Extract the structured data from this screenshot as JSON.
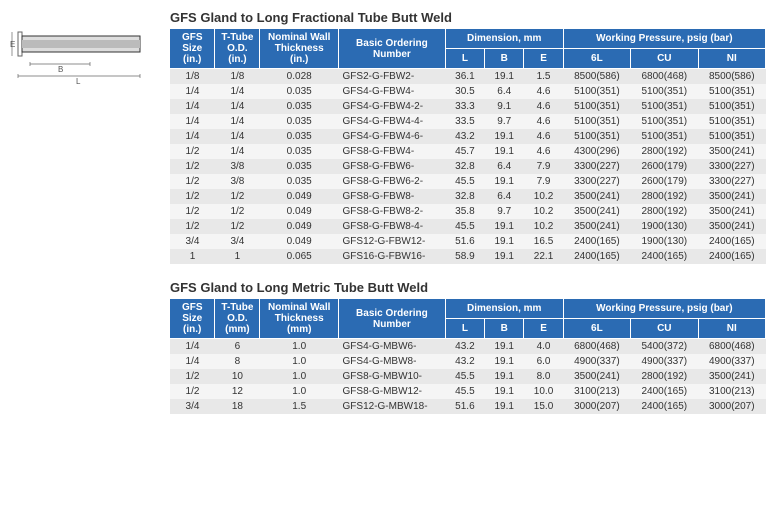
{
  "table1": {
    "title": "GFS Gland to Long Fractional Tube Butt Weld",
    "headers": {
      "gfs": "GFS Size (in.)",
      "ttube": "T-Tube O.D. (in.)",
      "nominal": "Nominal Wall Thickness (in.)",
      "basic": "Basic Ordering Number",
      "dim_group": "Dimension, mm",
      "L": "L",
      "B": "B",
      "E": "E",
      "wp_group": "Working Pressure, psig (bar)",
      "6L": "6L",
      "CU": "CU",
      "NI": "NI"
    },
    "rows": [
      {
        "gfs": "1/8",
        "ttube": "1/8",
        "nom": "0.028",
        "bon": "GFS2-G-FBW2-",
        "L": "36.1",
        "B": "19.1",
        "E": "1.5",
        "6L": "8500(586)",
        "CU": "6800(468)",
        "NI": "8500(586)"
      },
      {
        "gfs": "1/4",
        "ttube": "1/4",
        "nom": "0.035",
        "bon": "GFS4-G-FBW4-",
        "L": "30.5",
        "B": "6.4",
        "E": "4.6",
        "6L": "5100(351)",
        "CU": "5100(351)",
        "NI": "5100(351)"
      },
      {
        "gfs": "1/4",
        "ttube": "1/4",
        "nom": "0.035",
        "bon": "GFS4-G-FBW4-2-",
        "L": "33.3",
        "B": "9.1",
        "E": "4.6",
        "6L": "5100(351)",
        "CU": "5100(351)",
        "NI": "5100(351)"
      },
      {
        "gfs": "1/4",
        "ttube": "1/4",
        "nom": "0.035",
        "bon": "GFS4-G-FBW4-4-",
        "L": "33.5",
        "B": "9.7",
        "E": "4.6",
        "6L": "5100(351)",
        "CU": "5100(351)",
        "NI": "5100(351)"
      },
      {
        "gfs": "1/4",
        "ttube": "1/4",
        "nom": "0.035",
        "bon": "GFS4-G-FBW4-6-",
        "L": "43.2",
        "B": "19.1",
        "E": "4.6",
        "6L": "5100(351)",
        "CU": "5100(351)",
        "NI": "5100(351)"
      },
      {
        "gfs": "1/2",
        "ttube": "1/4",
        "nom": "0.035",
        "bon": "GFS8-G-FBW4-",
        "L": "45.7",
        "B": "19.1",
        "E": "4.6",
        "6L": "4300(296)",
        "CU": "2800(192)",
        "NI": "3500(241)"
      },
      {
        "gfs": "1/2",
        "ttube": "3/8",
        "nom": "0.035",
        "bon": "GFS8-G-FBW6-",
        "L": "32.8",
        "B": "6.4",
        "E": "7.9",
        "6L": "3300(227)",
        "CU": "2600(179)",
        "NI": "3300(227)"
      },
      {
        "gfs": "1/2",
        "ttube": "3/8",
        "nom": "0.035",
        "bon": "GFS8-G-FBW6-2-",
        "L": "45.5",
        "B": "19.1",
        "E": "7.9",
        "6L": "3300(227)",
        "CU": "2600(179)",
        "NI": "3300(227)"
      },
      {
        "gfs": "1/2",
        "ttube": "1/2",
        "nom": "0.049",
        "bon": "GFS8-G-FBW8-",
        "L": "32.8",
        "B": "6.4",
        "E": "10.2",
        "6L": "3500(241)",
        "CU": "2800(192)",
        "NI": "3500(241)"
      },
      {
        "gfs": "1/2",
        "ttube": "1/2",
        "nom": "0.049",
        "bon": "GFS8-G-FBW8-2-",
        "L": "35.8",
        "B": "9.7",
        "E": "10.2",
        "6L": "3500(241)",
        "CU": "2800(192)",
        "NI": "3500(241)"
      },
      {
        "gfs": "1/2",
        "ttube": "1/2",
        "nom": "0.049",
        "bon": "GFS8-G-FBW8-4-",
        "L": "45.5",
        "B": "19.1",
        "E": "10.2",
        "6L": "3500(241)",
        "CU": "1900(130)",
        "NI": "3500(241)"
      },
      {
        "gfs": "3/4",
        "ttube": "3/4",
        "nom": "0.049",
        "bon": "GFS12-G-FBW12-",
        "L": "51.6",
        "B": "19.1",
        "E": "16.5",
        "6L": "2400(165)",
        "CU": "1900(130)",
        "NI": "2400(165)"
      },
      {
        "gfs": "1",
        "ttube": "1",
        "nom": "0.065",
        "bon": "GFS16-G-FBW16-",
        "L": "58.9",
        "B": "19.1",
        "E": "22.1",
        "6L": "2400(165)",
        "CU": "2400(165)",
        "NI": "2400(165)"
      }
    ]
  },
  "table2": {
    "title": "GFS Gland to Long Metric Tube Butt Weld",
    "headers": {
      "gfs": "GFS Size (in.)",
      "ttube": "T-Tube O.D. (mm)",
      "nominal": "Nominal Wall Thickness (mm)",
      "basic": "Basic Ordering Number",
      "dim_group": "Dimension, mm",
      "L": "L",
      "B": "B",
      "E": "E",
      "wp_group": "Working Pressure, psig (bar)",
      "6L": "6L",
      "CU": "CU",
      "NI": "NI"
    },
    "rows": [
      {
        "gfs": "1/4",
        "ttube": "6",
        "nom": "1.0",
        "bon": "GFS4-G-MBW6-",
        "L": "43.2",
        "B": "19.1",
        "E": "4.0",
        "6L": "6800(468)",
        "CU": "5400(372)",
        "NI": "6800(468)"
      },
      {
        "gfs": "1/4",
        "ttube": "8",
        "nom": "1.0",
        "bon": "GFS4-G-MBW8-",
        "L": "43.2",
        "B": "19.1",
        "E": "6.0",
        "6L": "4900(337)",
        "CU": "4900(337)",
        "NI": "4900(337)"
      },
      {
        "gfs": "1/2",
        "ttube": "10",
        "nom": "1.0",
        "bon": "GFS8-G-MBW10-",
        "L": "45.5",
        "B": "19.1",
        "E": "8.0",
        "6L": "3500(241)",
        "CU": "2800(192)",
        "NI": "3500(241)"
      },
      {
        "gfs": "1/2",
        "ttube": "12",
        "nom": "1.0",
        "bon": "GFS8-G-MBW12-",
        "L": "45.5",
        "B": "19.1",
        "E": "10.0",
        "6L": "3100(213)",
        "CU": "2400(165)",
        "NI": "3100(213)"
      },
      {
        "gfs": "3/4",
        "ttube": "18",
        "nom": "1.5",
        "bon": "GFS12-G-MBW18-",
        "L": "51.6",
        "B": "19.1",
        "E": "15.0",
        "6L": "3000(207)",
        "CU": "2400(165)",
        "NI": "3000(207)"
      }
    ]
  },
  "schematic": {
    "labelE": "E",
    "labelB": "B",
    "labelL": "L"
  }
}
